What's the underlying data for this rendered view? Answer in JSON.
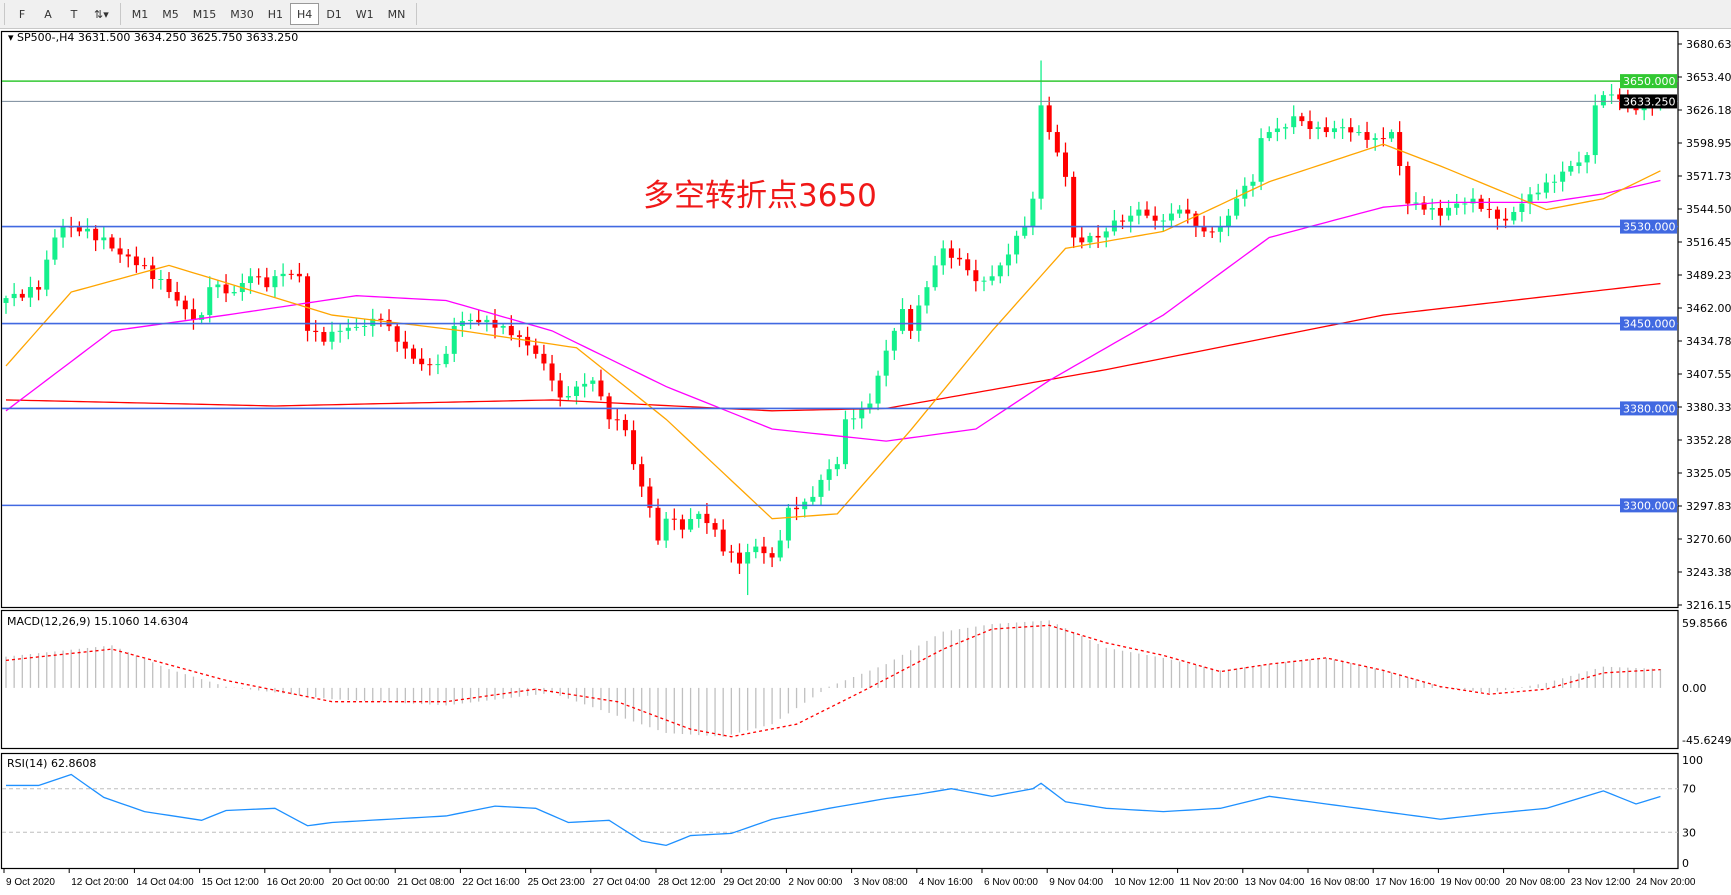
{
  "toolbar": {
    "tools": [
      {
        "label": "F",
        "icon": "grid-icon"
      },
      {
        "label": "A",
        "icon": "text-icon"
      },
      {
        "label": "T",
        "icon": "text-label-icon"
      },
      {
        "label": "⇅▾",
        "icon": "arrows-dropdown-icon"
      }
    ],
    "timeframes": [
      "M1",
      "M5",
      "M15",
      "M30",
      "H1",
      "H4",
      "D1",
      "W1",
      "MN"
    ],
    "active_timeframe": "H4"
  },
  "annotation": "多空转折点3650",
  "chart_data": [
    {
      "type": "candlestick",
      "title": "SP500-,H4  3631.500 3634.250 3625.750 3633.250",
      "symbol": "SP500-",
      "timeframe": "H4",
      "ohlc_last": {
        "open": 3631.5,
        "high": 3634.25,
        "low": 3625.75,
        "close": 3633.25
      },
      "ylim": [
        3216.155,
        3680.63
      ],
      "y_ticks": [
        "3680.630",
        "3653.405",
        "3626.180",
        "3598.955",
        "3571.730",
        "3544.505",
        "3516.455",
        "3489.230",
        "3462.005",
        "3434.780",
        "3407.555",
        "3380.330",
        "3352.280",
        "3325.055",
        "3297.830",
        "3270.605",
        "3243.380",
        "3216.155"
      ],
      "x_ticks": [
        "9 Oct 2020",
        "12 Oct 20:00",
        "14 Oct 04:00",
        "15 Oct 12:00",
        "16 Oct 20:00",
        "20 Oct 00:00",
        "21 Oct 08:00",
        "22 Oct 16:00",
        "25 Oct 23:00",
        "27 Oct 04:00",
        "28 Oct 12:00",
        "29 Oct 20:00",
        "2 Nov 00:00",
        "3 Nov 08:00",
        "4 Nov 16:00",
        "6 Nov 00:00",
        "9 Nov 04:00",
        "10 Nov 12:00",
        "11 Nov 20:00",
        "13 Nov 04:00",
        "16 Nov 08:00",
        "17 Nov 16:00",
        "19 Nov 00:00",
        "20 Nov 08:00",
        "23 Nov 12:00",
        "24 Nov 20:00"
      ],
      "bars_per_x_tick": 8,
      "colors": {
        "bull": "#14f08c",
        "bear": "#ff0000",
        "ma_fast": "#ffa500",
        "ma_mid": "#ff00ff",
        "ma_slow": "#ff0000",
        "support": "#4169e1",
        "pivot": "#32c832",
        "current": "#778899"
      },
      "horizontal_lines": [
        {
          "value": 3650,
          "label": "3650.000",
          "kind": "pivot"
        },
        {
          "value": 3530,
          "label": "3530.000",
          "kind": "support"
        },
        {
          "value": 3450,
          "label": "3450.000",
          "kind": "support"
        },
        {
          "value": 3380,
          "label": "3380.000",
          "kind": "support"
        },
        {
          "value": 3300,
          "label": "3300.000",
          "kind": "support"
        },
        {
          "value": 3633.25,
          "label": "3633.250",
          "kind": "current"
        }
      ],
      "close_by_bar": [
        [
          0,
          3471
        ],
        [
          4,
          3478
        ],
        [
          6,
          3521
        ],
        [
          7,
          3530
        ],
        [
          9,
          3526
        ],
        [
          12,
          3521
        ],
        [
          14,
          3507
        ],
        [
          17,
          3498
        ],
        [
          20,
          3476
        ],
        [
          23,
          3453
        ],
        [
          24,
          3457
        ],
        [
          25,
          3480
        ],
        [
          28,
          3476
        ],
        [
          30,
          3489
        ],
        [
          32,
          3480
        ],
        [
          34,
          3491
        ],
        [
          36,
          3489
        ],
        [
          37,
          3444
        ],
        [
          39,
          3435
        ],
        [
          41,
          3444
        ],
        [
          44,
          3448
        ],
        [
          46,
          3453
        ],
        [
          48,
          3435
        ],
        [
          50,
          3421
        ],
        [
          52,
          3416
        ],
        [
          54,
          3425
        ],
        [
          55,
          3448
        ],
        [
          57,
          3453
        ],
        [
          59,
          3453
        ],
        [
          61,
          3448
        ],
        [
          63,
          3439
        ],
        [
          65,
          3425
        ],
        [
          67,
          3403
        ],
        [
          68,
          3389
        ],
        [
          70,
          3398
        ],
        [
          72,
          3403
        ],
        [
          74,
          3371
        ],
        [
          76,
          3362
        ],
        [
          77,
          3334
        ],
        [
          79,
          3298
        ],
        [
          80,
          3271
        ],
        [
          81,
          3289
        ],
        [
          83,
          3280
        ],
        [
          85,
          3293
        ],
        [
          87,
          3280
        ],
        [
          88,
          3262
        ],
        [
          90,
          3252
        ],
        [
          92,
          3266
        ],
        [
          94,
          3257
        ],
        [
          95,
          3271
        ],
        [
          96,
          3298
        ],
        [
          98,
          3303
        ],
        [
          99,
          3307
        ],
        [
          100,
          3321
        ],
        [
          102,
          3334
        ],
        [
          103,
          3371
        ],
        [
          105,
          3380
        ],
        [
          106,
          3384
        ],
        [
          107,
          3407
        ],
        [
          109,
          3444
        ],
        [
          110,
          3462
        ],
        [
          111,
          3444
        ],
        [
          113,
          3480
        ],
        [
          114,
          3498
        ],
        [
          115,
          3512
        ],
        [
          117,
          3503
        ],
        [
          118,
          3494
        ],
        [
          119,
          3485
        ],
        [
          121,
          3489
        ],
        [
          122,
          3498
        ],
        [
          123,
          3507
        ],
        [
          125,
          3530
        ],
        [
          126,
          3553
        ],
        [
          127,
          3630
        ],
        [
          128,
          3608
        ],
        [
          130,
          3571
        ],
        [
          131,
          3521
        ],
        [
          132,
          3517
        ],
        [
          134,
          3521
        ],
        [
          135,
          3526
        ],
        [
          136,
          3535
        ],
        [
          138,
          3539
        ],
        [
          139,
          3544
        ],
        [
          140,
          3539
        ],
        [
          142,
          3535
        ],
        [
          144,
          3544
        ],
        [
          146,
          3530
        ],
        [
          147,
          3526
        ],
        [
          149,
          3530
        ],
        [
          150,
          3539
        ],
        [
          151,
          3553
        ],
        [
          153,
          3567
        ],
        [
          154,
          3603
        ],
        [
          155,
          3608
        ],
        [
          157,
          3612
        ],
        [
          158,
          3621
        ],
        [
          159,
          3617
        ],
        [
          161,
          3612
        ],
        [
          162,
          3608
        ],
        [
          164,
          3612
        ],
        [
          166,
          3608
        ],
        [
          168,
          3603
        ],
        [
          170,
          3608
        ],
        [
          171,
          3580
        ],
        [
          172,
          3549
        ],
        [
          174,
          3544
        ],
        [
          176,
          3539
        ],
        [
          178,
          3549
        ],
        [
          180,
          3553
        ],
        [
          182,
          3544
        ],
        [
          184,
          3535
        ],
        [
          186,
          3549
        ],
        [
          188,
          3558
        ],
        [
          190,
          3567
        ],
        [
          192,
          3580
        ],
        [
          194,
          3589
        ],
        [
          195,
          3630
        ],
        [
          197,
          3639
        ],
        [
          198,
          3635
        ],
        [
          200,
          3626
        ],
        [
          202,
          3630
        ],
        [
          203,
          3633.25
        ]
      ],
      "ma_fast": [
        [
          0,
          3415
        ],
        [
          8,
          3476
        ],
        [
          20,
          3498
        ],
        [
          40,
          3457
        ],
        [
          56,
          3444
        ],
        [
          70,
          3430
        ],
        [
          81,
          3371
        ],
        [
          94,
          3289
        ],
        [
          102,
          3293
        ],
        [
          111,
          3362
        ],
        [
          121,
          3444
        ],
        [
          130,
          3512
        ],
        [
          142,
          3526
        ],
        [
          155,
          3567
        ],
        [
          169,
          3598
        ],
        [
          176,
          3580
        ],
        [
          189,
          3544
        ],
        [
          196,
          3553
        ],
        [
          203,
          3576
        ]
      ],
      "ma_mid": [
        [
          0,
          3378
        ],
        [
          13,
          3444
        ],
        [
          27,
          3457
        ],
        [
          43,
          3473
        ],
        [
          54,
          3469
        ],
        [
          67,
          3444
        ],
        [
          81,
          3398
        ],
        [
          94,
          3363
        ],
        [
          108,
          3353
        ],
        [
          119,
          3363
        ],
        [
          128,
          3403
        ],
        [
          142,
          3457
        ],
        [
          155,
          3521
        ],
        [
          169,
          3546
        ],
        [
          176,
          3550
        ],
        [
          189,
          3550
        ],
        [
          196,
          3557
        ],
        [
          203,
          3568
        ]
      ],
      "ma_slow": [
        [
          0,
          3387
        ],
        [
          33,
          3382
        ],
        [
          67,
          3387
        ],
        [
          94,
          3378
        ],
        [
          108,
          3380
        ],
        [
          135,
          3412
        ],
        [
          169,
          3457
        ],
        [
          203,
          3483
        ]
      ]
    },
    {
      "type": "bar+line",
      "title": "MACD(12,26,9) 15.1060 14.6304",
      "ylim": [
        -45.6249,
        59.8566
      ],
      "y_ticks": [
        "59.8566",
        "0.00",
        "-45.6249"
      ],
      "macd": [
        [
          0,
          25
        ],
        [
          13,
          34
        ],
        [
          20,
          15
        ],
        [
          27,
          1
        ],
        [
          40,
          -9
        ],
        [
          54,
          -14
        ],
        [
          67,
          -4
        ],
        [
          81,
          -36
        ],
        [
          88,
          -39
        ],
        [
          94,
          -29
        ],
        [
          101,
          1
        ],
        [
          108,
          19
        ],
        [
          115,
          45
        ],
        [
          121,
          51
        ],
        [
          128,
          54
        ],
        [
          135,
          32
        ],
        [
          142,
          24
        ],
        [
          149,
          14
        ],
        [
          155,
          19
        ],
        [
          162,
          24
        ],
        [
          169,
          14
        ],
        [
          176,
          1
        ],
        [
          182,
          -4
        ],
        [
          189,
          4
        ],
        [
          196,
          17
        ],
        [
          203,
          15.106
        ]
      ],
      "signal": [
        [
          0,
          22
        ],
        [
          13,
          31
        ],
        [
          27,
          6
        ],
        [
          40,
          -11
        ],
        [
          54,
          -11
        ],
        [
          65,
          -1
        ],
        [
          75,
          -11
        ],
        [
          84,
          -33
        ],
        [
          89,
          -39
        ],
        [
          97,
          -29
        ],
        [
          105,
          -3
        ],
        [
          115,
          31
        ],
        [
          121,
          47
        ],
        [
          128,
          50
        ],
        [
          135,
          36
        ],
        [
          142,
          26
        ],
        [
          149,
          13
        ],
        [
          155,
          19
        ],
        [
          162,
          24
        ],
        [
          169,
          14
        ],
        [
          176,
          1
        ],
        [
          182,
          -5
        ],
        [
          189,
          -1
        ],
        [
          196,
          12
        ],
        [
          203,
          14.6304
        ]
      ]
    },
    {
      "type": "line",
      "title": "RSI(14) 62.8608",
      "ylim": [
        0,
        100
      ],
      "y_ticks": [
        "100",
        "70",
        "30",
        "0"
      ],
      "levels": [
        70,
        30
      ],
      "color": "#1e90ff",
      "values": [
        [
          0,
          73
        ],
        [
          4,
          73
        ],
        [
          8,
          83
        ],
        [
          12,
          62
        ],
        [
          17,
          49
        ],
        [
          24,
          41
        ],
        [
          27,
          50
        ],
        [
          33,
          52
        ],
        [
          37,
          36
        ],
        [
          40,
          39
        ],
        [
          47,
          42
        ],
        [
          54,
          45
        ],
        [
          60,
          54
        ],
        [
          65,
          52
        ],
        [
          69,
          39
        ],
        [
          74,
          41
        ],
        [
          78,
          22
        ],
        [
          81,
          18
        ],
        [
          84,
          27
        ],
        [
          89,
          29
        ],
        [
          94,
          42
        ],
        [
          101,
          52
        ],
        [
          108,
          61
        ],
        [
          112,
          65
        ],
        [
          116,
          70
        ],
        [
          121,
          63
        ],
        [
          126,
          70
        ],
        [
          127,
          75
        ],
        [
          130,
          58
        ],
        [
          135,
          52
        ],
        [
          142,
          49
        ],
        [
          149,
          52
        ],
        [
          155,
          63
        ],
        [
          162,
          56
        ],
        [
          169,
          49
        ],
        [
          176,
          42
        ],
        [
          182,
          47
        ],
        [
          189,
          52
        ],
        [
          196,
          68
        ],
        [
          200,
          56
        ],
        [
          203,
          62.8608
        ]
      ]
    }
  ]
}
